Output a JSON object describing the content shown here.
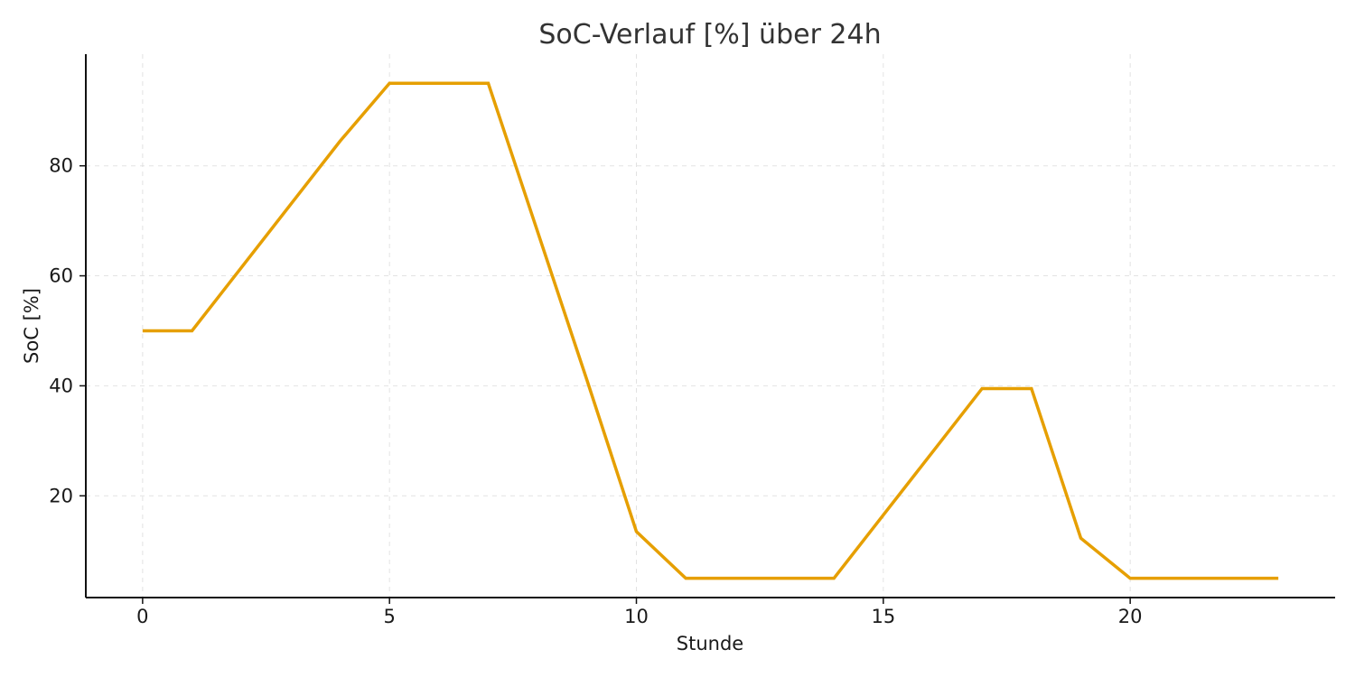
{
  "chart_data": {
    "type": "line",
    "title": "SoC-Verlauf [%] über 24h",
    "xlabel": "Stunde",
    "ylabel": "SoC [%]",
    "x": [
      0,
      1,
      2,
      3,
      4,
      5,
      6,
      7,
      8,
      9,
      10,
      11,
      12,
      13,
      14,
      15,
      16,
      17,
      18,
      19,
      20,
      21,
      22,
      23
    ],
    "series": [
      {
        "values": [
          50.0,
          50.0,
          61.5,
          73.0,
          84.5,
          95.0,
          95.0,
          95.0,
          68.0,
          41.0,
          13.5,
          5.0,
          5.0,
          5.0,
          5.0,
          16.5,
          28.0,
          39.5,
          39.5,
          12.3,
          5.0,
          5.0,
          5.0,
          5.0
        ],
        "color": "#E69F00"
      }
    ],
    "xlim": [
      -1.15,
      24.15
    ],
    "ylim": [
      1.5,
      100.3
    ],
    "xticks": [
      0,
      5,
      10,
      15,
      20
    ],
    "yticks": [
      20,
      40,
      60,
      80
    ],
    "grid": true,
    "legend": "none"
  }
}
